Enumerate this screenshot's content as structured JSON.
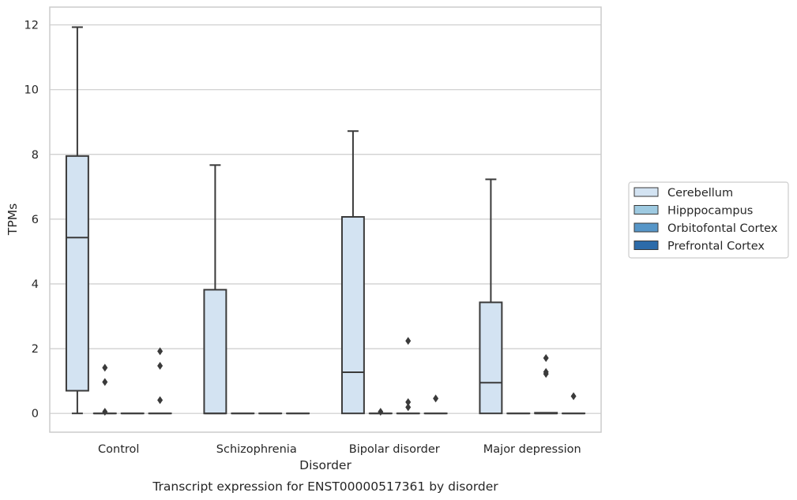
{
  "chart_data": {
    "type": "box",
    "title": "",
    "caption": "Transcript expression for ENST00000517361 by disorder",
    "xlabel": "Disorder",
    "ylabel": "TPMs",
    "ylim": [
      -0.58,
      12.55
    ],
    "yticks": [
      0,
      2,
      4,
      6,
      8,
      10,
      12
    ],
    "grid": "horizontal",
    "legend_position": "right",
    "categories": [
      "Control",
      "Schizophrenia",
      "Bipolar disorder",
      "Major depression"
    ],
    "series": [
      {
        "name": "Cerebellum",
        "color": "#d3e3f2",
        "boxes": [
          {
            "whisker_low": 0,
            "q1": 0.7,
            "median": 5.43,
            "q3": 7.95,
            "whisker_high": 11.93,
            "outliers": []
          },
          {
            "whisker_low": 0,
            "q1": 0,
            "median": 0,
            "q3": 3.82,
            "whisker_high": 7.67,
            "outliers": []
          },
          {
            "whisker_low": 0,
            "q1": 0,
            "median": 1.27,
            "q3": 6.07,
            "whisker_high": 8.72,
            "outliers": []
          },
          {
            "whisker_low": 0,
            "q1": 0,
            "median": 0.95,
            "q3": 3.43,
            "whisker_high": 7.23,
            "outliers": []
          }
        ]
      },
      {
        "name": "Hipppocampus",
        "color": "#9ecae1",
        "boxes": [
          {
            "whisker_low": 0,
            "q1": 0,
            "median": 0,
            "q3": 0,
            "whisker_high": 0,
            "outliers": [
              0.05,
              0.97,
              1.41
            ]
          },
          {
            "whisker_low": 0,
            "q1": 0,
            "median": 0,
            "q3": 0,
            "whisker_high": 0,
            "outliers": []
          },
          {
            "whisker_low": 0,
            "q1": 0,
            "median": 0,
            "q3": 0,
            "whisker_high": 0,
            "outliers": [
              0.05
            ]
          },
          {
            "whisker_low": 0,
            "q1": 0,
            "median": 0,
            "q3": 0,
            "whisker_high": 0,
            "outliers": []
          }
        ]
      },
      {
        "name": "Orbitofontal Cortex",
        "color": "#5696c8",
        "boxes": [
          {
            "whisker_low": 0,
            "q1": 0,
            "median": 0,
            "q3": 0,
            "whisker_high": 0,
            "outliers": []
          },
          {
            "whisker_low": 0,
            "q1": 0,
            "median": 0,
            "q3": 0,
            "whisker_high": 0,
            "outliers": []
          },
          {
            "whisker_low": 0,
            "q1": 0,
            "median": 0,
            "q3": 0,
            "whisker_high": 0,
            "outliers": [
              0.19,
              0.35,
              2.24
            ]
          },
          {
            "whisker_low": 0,
            "q1": 0,
            "median": 0,
            "q3": 0.02,
            "whisker_high": 0.02,
            "outliers": [
              1.22,
              1.28,
              1.71
            ]
          }
        ]
      },
      {
        "name": "Prefrontal Cortex",
        "color": "#2c6ba9",
        "boxes": [
          {
            "whisker_low": 0,
            "q1": 0,
            "median": 0,
            "q3": 0,
            "whisker_high": 0,
            "outliers": [
              0.41,
              1.47,
              1.92
            ]
          },
          {
            "whisker_low": 0,
            "q1": 0,
            "median": 0,
            "q3": 0,
            "whisker_high": 0,
            "outliers": []
          },
          {
            "whisker_low": 0,
            "q1": 0,
            "median": 0,
            "q3": 0,
            "whisker_high": 0,
            "outliers": [
              0.46
            ]
          },
          {
            "whisker_low": 0,
            "q1": 0,
            "median": 0,
            "q3": 0,
            "whisker_high": 0,
            "outliers": [
              0.53
            ]
          }
        ]
      }
    ]
  }
}
